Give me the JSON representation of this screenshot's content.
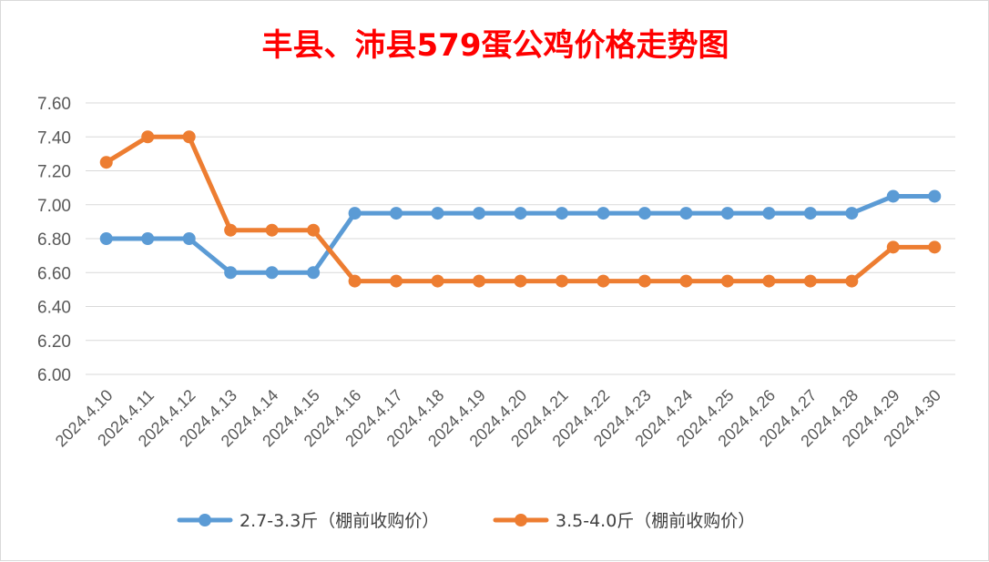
{
  "chart_data": {
    "type": "line",
    "title": "丰县、沛县579蛋公鸡价格走势图",
    "title_color": "#ff0000",
    "xlabel": "",
    "ylabel": "",
    "ylim": [
      6.0,
      7.6
    ],
    "y_ticks": [
      "6.00",
      "6.20",
      "6.40",
      "6.60",
      "6.80",
      "7.00",
      "7.20",
      "7.40",
      "7.60"
    ],
    "grid": true,
    "legend_position": "bottom",
    "categories": [
      "2024.4.10",
      "2024.4.11",
      "2024.4.12",
      "2024.4.13",
      "2024.4.14",
      "2024.4.15",
      "2024.4.16",
      "2024.4.17",
      "2024.4.18",
      "2024.4.19",
      "2024.4.20",
      "2024.4.21",
      "2024.4.22",
      "2024.4.23",
      "2024.4.24",
      "2024.4.25",
      "2024.4.26",
      "2024.4.27",
      "2024.4.28",
      "2024.4.29",
      "2024.4.30"
    ],
    "series": [
      {
        "name": "2.7-3.3斤（棚前收购价）",
        "color": "#5b9bd5",
        "values": [
          6.8,
          6.8,
          6.8,
          6.6,
          6.6,
          6.6,
          6.95,
          6.95,
          6.95,
          6.95,
          6.95,
          6.95,
          6.95,
          6.95,
          6.95,
          6.95,
          6.95,
          6.95,
          6.95,
          7.05,
          7.05
        ]
      },
      {
        "name": "3.5-4.0斤（棚前收购价）",
        "color": "#ed7d31",
        "values": [
          7.25,
          7.4,
          7.4,
          6.85,
          6.85,
          6.85,
          6.55,
          6.55,
          6.55,
          6.55,
          6.55,
          6.55,
          6.55,
          6.55,
          6.55,
          6.55,
          6.55,
          6.55,
          6.55,
          6.75,
          6.75
        ]
      }
    ]
  }
}
